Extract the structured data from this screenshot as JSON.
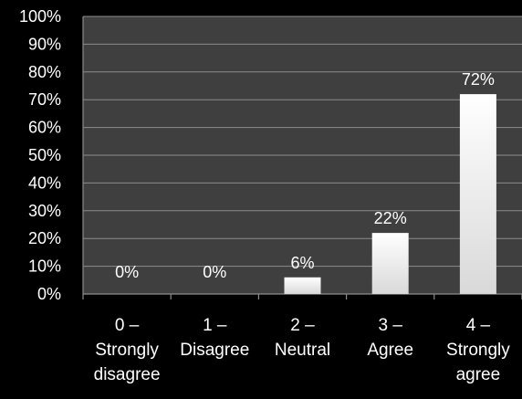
{
  "chart_data": {
    "type": "bar",
    "categories": [
      [
        "0 –",
        "Strongly",
        "disagree"
      ],
      [
        "1 –",
        "Disagree"
      ],
      [
        "2 –",
        "Neutral"
      ],
      [
        "3 –",
        "Agree"
      ],
      [
        "4 –",
        "Strongly",
        "agree"
      ]
    ],
    "values": [
      0,
      0,
      6,
      22,
      72
    ],
    "data_labels": [
      "0%",
      "0%",
      "6%",
      "22%",
      "72%"
    ],
    "y_ticks": [
      "0%",
      "10%",
      "20%",
      "30%",
      "40%",
      "50%",
      "60%",
      "70%",
      "80%",
      "90%",
      "100%"
    ],
    "ylim": [
      0,
      100
    ],
    "grid": true,
    "legend": "none",
    "colors": {
      "background": "#000000",
      "plot_area": "#3f3f3f",
      "gridline": "#8c8c8c",
      "bar_top": "#ffffff",
      "bar_bottom": "#d9d9d9",
      "text": "#ffffff"
    }
  }
}
